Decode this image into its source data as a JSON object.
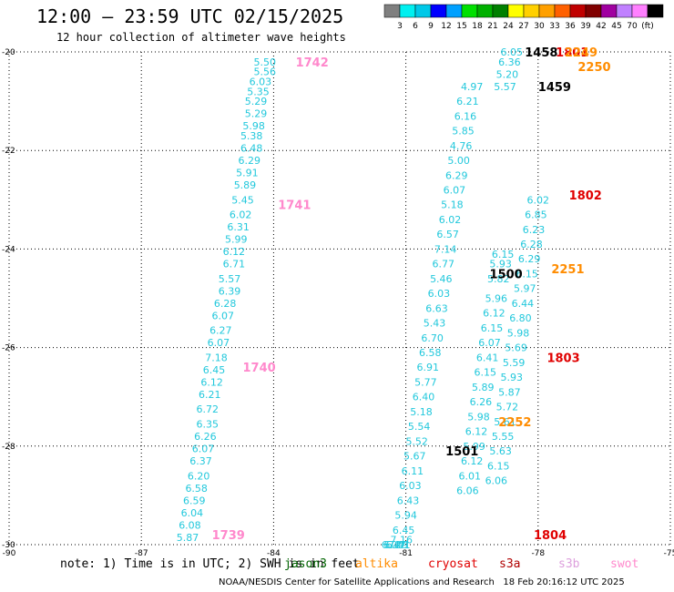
{
  "title": "12:00 — 23:59 UTC 02/15/2025",
  "subtitle": "12 hour collection of altimeter wave heights",
  "footer": {
    "note": "note: 1) Time is in UTC; 2) SWH is in feet",
    "credit": "NOAA/NESDIS Center for Satellite Applications and Research   18 Feb 20:16:12 UTC 2025"
  },
  "satellites": [
    {
      "name": "jason3",
      "color": "#006400"
    },
    {
      "name": "altika",
      "color": "#ff8c00"
    },
    {
      "name": "cryosat",
      "color": "#e00000"
    },
    {
      "name": "s3a",
      "color": "#b00000"
    },
    {
      "name": "s3b",
      "color": "#dda0dd"
    },
    {
      "name": "swot",
      "color": "#ff88cc"
    }
  ],
  "colorbar": {
    "colors": [
      "#7f7f7f",
      "#00f0f0",
      "#00c8e8",
      "#0000ff",
      "#00a0ff",
      "#00e000",
      "#00b000",
      "#008000",
      "#ffff00",
      "#ffd000",
      "#ffa000",
      "#ff6000",
      "#c00000",
      "#800000",
      "#a000a0",
      "#c080ff",
      "#ff80ff",
      "#000000"
    ],
    "labels": [
      "3",
      "6",
      "9",
      "12",
      "15",
      "18",
      "21",
      "24",
      "27",
      "30",
      "33",
      "36",
      "39",
      "42",
      "45",
      "70",
      "(ft)"
    ]
  },
  "chart_data": {
    "type": "scatter",
    "title": "12:00 — 23:59 UTC 02/15/2025",
    "xlabel": "",
    "ylabel": "",
    "xlim": [
      -90,
      -75
    ],
    "ylim": [
      -30,
      -20
    ],
    "xticks": [
      "-90",
      "-87",
      "-84",
      "-81",
      "-78",
      "-75"
    ],
    "yticks": [
      "-20",
      "-22",
      "-24",
      "-26",
      "-28",
      "-30"
    ],
    "grid": true,
    "swh_color": "#22c8dc",
    "series": [
      {
        "x": [
          -84.2,
          -84.2,
          -84.3,
          -84.35,
          -84.4,
          -84.4,
          -84.45,
          -84.5,
          -84.5,
          -84.55,
          -84.6,
          -84.65,
          -84.7,
          -84.75,
          -84.8,
          -84.85,
          -84.9,
          -84.9,
          -85.0,
          -85.0,
          -85.1,
          -85.15,
          -85.2,
          -85.25,
          -85.3,
          -85.35,
          -85.4,
          -85.45,
          -85.5,
          -85.5,
          -85.55,
          -85.6,
          -85.65,
          -85.7,
          -85.75,
          -85.8,
          -85.85,
          -85.9,
          -85.95,
          -86.0,
          -86.1
        ],
        "y": [
          -20.2,
          -20.4,
          -20.6,
          -20.8,
          -21.0,
          -21.25,
          -21.5,
          -21.7,
          -21.95,
          -22.2,
          -22.45,
          -22.7,
          -23.0,
          -23.3,
          -23.55,
          -23.8,
          -24.05,
          -24.3,
          -24.6,
          -24.85,
          -25.1,
          -25.35,
          -25.65,
          -25.9,
          -26.2,
          -26.45,
          -26.7,
          -26.95,
          -27.25,
          -27.55,
          -27.8,
          -28.05,
          -28.3,
          -28.6,
          -28.85,
          -29.1,
          -29.35,
          -29.6,
          -29.85,
          -29.95,
          -30.0
        ],
        "labels": [
          "5.50",
          "5.56",
          "6.03",
          "5.35",
          "5.29",
          "5.29",
          "5.98",
          "5.38",
          "6.48",
          "6.29",
          "5.91",
          "5.89",
          "5.45",
          "6.02",
          "6.31",
          "5.99",
          "6.12",
          "6.71",
          "5.57",
          "6.39",
          "6.28",
          "6.07",
          "6.27",
          "6.07",
          "7.18",
          "6.45",
          "6.12",
          "6.21",
          "6.72",
          "6.35",
          "6.26",
          "6.07",
          "6.37",
          "6.20",
          "6.58",
          "6.59",
          "6.04",
          "6.08",
          "5.87",
          "",
          ""
        ]
      },
      {
        "x": [
          -79.5,
          -79.6,
          -79.65,
          -79.7,
          -79.75,
          -79.8,
          -79.85,
          -79.9,
          -79.95,
          -80.0,
          -80.05,
          -80.1,
          -80.15,
          -80.2,
          -80.25,
          -80.3,
          -80.35,
          -80.4,
          -80.45,
          -80.5,
          -80.55,
          -80.6,
          -80.65,
          -80.7,
          -80.75,
          -80.8,
          -80.85,
          -80.9,
          -80.95,
          -81.0,
          -81.05,
          -81.1,
          -81.15,
          -81.2,
          -81.25,
          -81.3
        ],
        "y": [
          -20.7,
          -21.0,
          -21.3,
          -21.6,
          -21.9,
          -22.2,
          -22.5,
          -22.8,
          -23.1,
          -23.4,
          -23.7,
          -24.0,
          -24.3,
          -24.6,
          -24.9,
          -25.2,
          -25.5,
          -25.8,
          -26.1,
          -26.4,
          -26.7,
          -27.0,
          -27.3,
          -27.6,
          -27.9,
          -28.2,
          -28.5,
          -28.8,
          -29.1,
          -29.4,
          -29.7,
          -29.9,
          -30.0,
          -30.0,
          -30.0,
          -30.0
        ],
        "labels": [
          "4.97",
          "6.21",
          "6.16",
          "5.85",
          "4.76",
          "5.00",
          "6.29",
          "6.07",
          "5.18",
          "6.02",
          "6.57",
          "7.14",
          "6.77",
          "5.46",
          "6.03",
          "6.63",
          "5.43",
          "6.70",
          "6.58",
          "6.91",
          "5.77",
          "6.40",
          "5.18",
          "5.54",
          "5.52",
          "5.67",
          "6.11",
          "6.03",
          "6.43",
          "5.94",
          "6.45",
          "7.16",
          "7.01",
          "6.29",
          "6.47",
          "6.04"
        ]
      },
      {
        "x": [
          -78.6,
          -78.65,
          -78.7,
          -78.75,
          -78.8,
          -78.85,
          -78.9,
          -78.95,
          -79.0,
          -79.05,
          -79.1,
          -79.15,
          -79.2,
          -79.25,
          -79.3,
          -79.35,
          -79.4,
          -79.45,
          -79.5,
          -79.55,
          -79.6
        ],
        "y": [
          -20.0,
          -20.2,
          -20.45,
          -20.7,
          -24.1,
          -24.3,
          -24.6,
          -25.0,
          -25.3,
          -25.6,
          -25.9,
          -26.2,
          -26.5,
          -26.8,
          -27.1,
          -27.4,
          -27.7,
          -28.0,
          -28.3,
          -28.6,
          -28.9
        ],
        "labels": [
          "6.05",
          "6.36",
          "5.20",
          "5.57",
          "6.15",
          "5.93",
          "5.82",
          "5.96",
          "6.12",
          "6.15",
          "6.07",
          "6.41",
          "6.15",
          "5.89",
          "6.26",
          "5.98",
          "6.12",
          "5.99",
          "6.12",
          "6.01",
          "6.06"
        ]
      },
      {
        "x": [
          -78.0,
          -78.05,
          -78.1,
          -78.15,
          -78.2,
          -78.25,
          -78.3,
          -78.35,
          -78.4,
          -78.45,
          -78.5,
          -78.55,
          -78.6,
          -78.65,
          -78.7,
          -78.75,
          -78.8,
          -78.85,
          -78.9,
          -78.95
        ],
        "y": [
          -23.0,
          -23.3,
          -23.6,
          -23.9,
          -24.2,
          -24.5,
          -24.8,
          -25.1,
          -25.4,
          -25.7,
          -26.0,
          -26.3,
          -26.6,
          -26.9,
          -27.2,
          -27.5,
          -27.8,
          -28.1,
          -28.4,
          -28.7
        ],
        "labels": [
          "6.02",
          "6.85",
          "6.23",
          "6.28",
          "6.29",
          "6.15",
          "5.97",
          "6.44",
          "6.80",
          "5.98",
          "5.69",
          "5.59",
          "5.93",
          "5.87",
          "5.72",
          "5.61",
          "5.55",
          "5.63",
          "6.15",
          "6.06"
        ]
      }
    ],
    "annotations": [
      {
        "text": "1742",
        "x": -83.5,
        "y": -20.2,
        "color": "#ff88cc"
      },
      {
        "text": "1741",
        "x": -83.9,
        "y": -23.1,
        "color": "#ff88cc"
      },
      {
        "text": "1740",
        "x": -84.7,
        "y": -26.4,
        "color": "#ff88cc"
      },
      {
        "text": "1739",
        "x": -85.4,
        "y": -29.8,
        "color": "#ff88cc"
      },
      {
        "text": "1458",
        "x": -78.3,
        "y": -20.0,
        "color": "#000000"
      },
      {
        "text": "1801",
        "x": -77.6,
        "y": -20.0,
        "color": "#e00000"
      },
      {
        "text": "2249",
        "x": -77.4,
        "y": -20.0,
        "color": "#ff8c00"
      },
      {
        "text": "2250",
        "x": -77.1,
        "y": -20.3,
        "color": "#ff8c00"
      },
      {
        "text": "1459",
        "x": -78.0,
        "y": -20.7,
        "color": "#000000"
      },
      {
        "text": "1802",
        "x": -77.3,
        "y": -22.9,
        "color": "#e00000"
      },
      {
        "text": "2251",
        "x": -77.7,
        "y": -24.4,
        "color": "#ff8c00"
      },
      {
        "text": "1500",
        "x": -79.1,
        "y": -24.5,
        "color": "#000000"
      },
      {
        "text": "1803",
        "x": -77.8,
        "y": -26.2,
        "color": "#e00000"
      },
      {
        "text": "2252",
        "x": -78.9,
        "y": -27.5,
        "color": "#ff8c00"
      },
      {
        "text": "1501",
        "x": -80.1,
        "y": -28.1,
        "color": "#000000"
      },
      {
        "text": "1804",
        "x": -78.1,
        "y": -29.8,
        "color": "#e00000"
      }
    ]
  }
}
